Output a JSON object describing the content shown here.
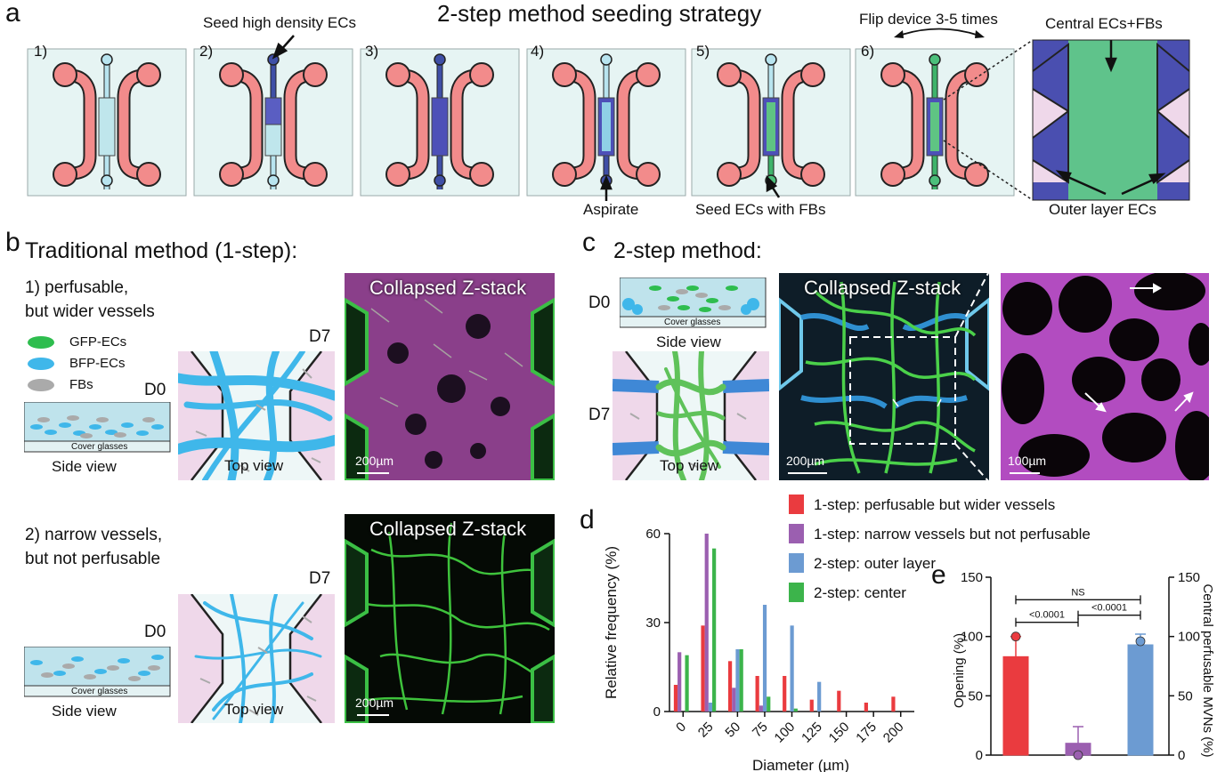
{
  "panel_a": {
    "letter": "a",
    "title": "2-step method seeding strategy",
    "steps": [
      "1)",
      "2)",
      "3)",
      "4)",
      "5)",
      "6)"
    ],
    "annotations": {
      "seed_high": "Seed high density ECs",
      "aspirate": "Aspirate",
      "seed_ecs_fbs": "Seed ECs with FBs",
      "flip": "Flip device 3-5 times",
      "central": "Central ECs+FBs",
      "outer": "Outer layer ECs"
    }
  },
  "panel_b": {
    "letter": "b",
    "title": "Traditional method (1-step):",
    "case1": "1) perfusable,\nbut wider vessels",
    "case2": "2) narrow vessels,\nbut not perfusable",
    "legend": [
      "GFP-ECs",
      "BFP-ECs",
      "FBs"
    ],
    "legend_colors": [
      "#2ebd4e",
      "#3fb7ea",
      "#aaaaaa"
    ],
    "d0": "D0",
    "d7": "D7",
    "cover_glasses": "Cover glasses",
    "side_view": "Side view",
    "top_view": "Top view",
    "micro_title": "Collapsed Z-stack",
    "scale": "200µm"
  },
  "panel_c": {
    "letter": "c",
    "title": "2-step method:",
    "d0": "D0",
    "d7": "D7",
    "cover_glasses": "Cover glasses",
    "side_view": "Side view",
    "top_view": "Top view",
    "micro_title": "Collapsed Z-stack",
    "scale1": "200µm",
    "scale2": "100µm"
  },
  "panel_d": {
    "letter": "d",
    "legend": [
      "1-step: perfusable but wider vessels",
      "1-step: narrow vessels but not perfusable",
      "2-step: outer layer",
      "2-step: center"
    ]
  },
  "panel_e": {
    "letter": "e"
  },
  "chart_data": [
    {
      "type": "bar",
      "xlabel": "Diameter (µm)",
      "ylabel": "Relative frequency (%)",
      "ylim": [
        0,
        60
      ],
      "yticks": [
        0,
        30,
        60
      ],
      "xticks": [
        0,
        25,
        50,
        75,
        100,
        125,
        150,
        175,
        200
      ],
      "categories": [
        0,
        25,
        50,
        75,
        100,
        125,
        150,
        175,
        200
      ],
      "series": [
        {
          "name": "1-step: perfusable but wider vessels",
          "color": "#ea3b3f",
          "values": [
            9,
            29,
            17,
            12,
            12,
            4,
            7,
            3,
            5
          ]
        },
        {
          "name": "1-step: narrow vessels but not perfusable",
          "color": "#9b5fb0",
          "values": [
            20,
            60,
            8,
            2,
            0,
            0,
            0,
            0,
            0
          ]
        },
        {
          "name": "2-step: outer layer",
          "color": "#6c9bd2",
          "values": [
            0,
            3,
            21,
            36,
            29,
            10,
            0,
            0,
            0
          ]
        },
        {
          "name": "2-step: center",
          "color": "#3cb44b",
          "values": [
            19,
            55,
            21,
            5,
            1,
            0,
            0,
            0,
            0
          ]
        }
      ]
    },
    {
      "type": "bar",
      "ylabel": "Opening (%)",
      "ylabel_right": "Central perfusable MVNs (%)",
      "ylim": [
        0,
        150
      ],
      "yticks": [
        0,
        50,
        100,
        150
      ],
      "bars": [
        {
          "value": 83,
          "error": 17,
          "point": 100,
          "color": "#ea3b3f"
        },
        {
          "value": 10,
          "error": 14,
          "point": 0,
          "color": "#9b5fb0"
        },
        {
          "value": 93,
          "error": 9,
          "point": 96,
          "color": "#6c9bd2"
        }
      ],
      "comparisons": [
        {
          "label": "NS"
        },
        {
          "label": "<0.0001"
        },
        {
          "label": "<0.0001"
        }
      ]
    }
  ]
}
